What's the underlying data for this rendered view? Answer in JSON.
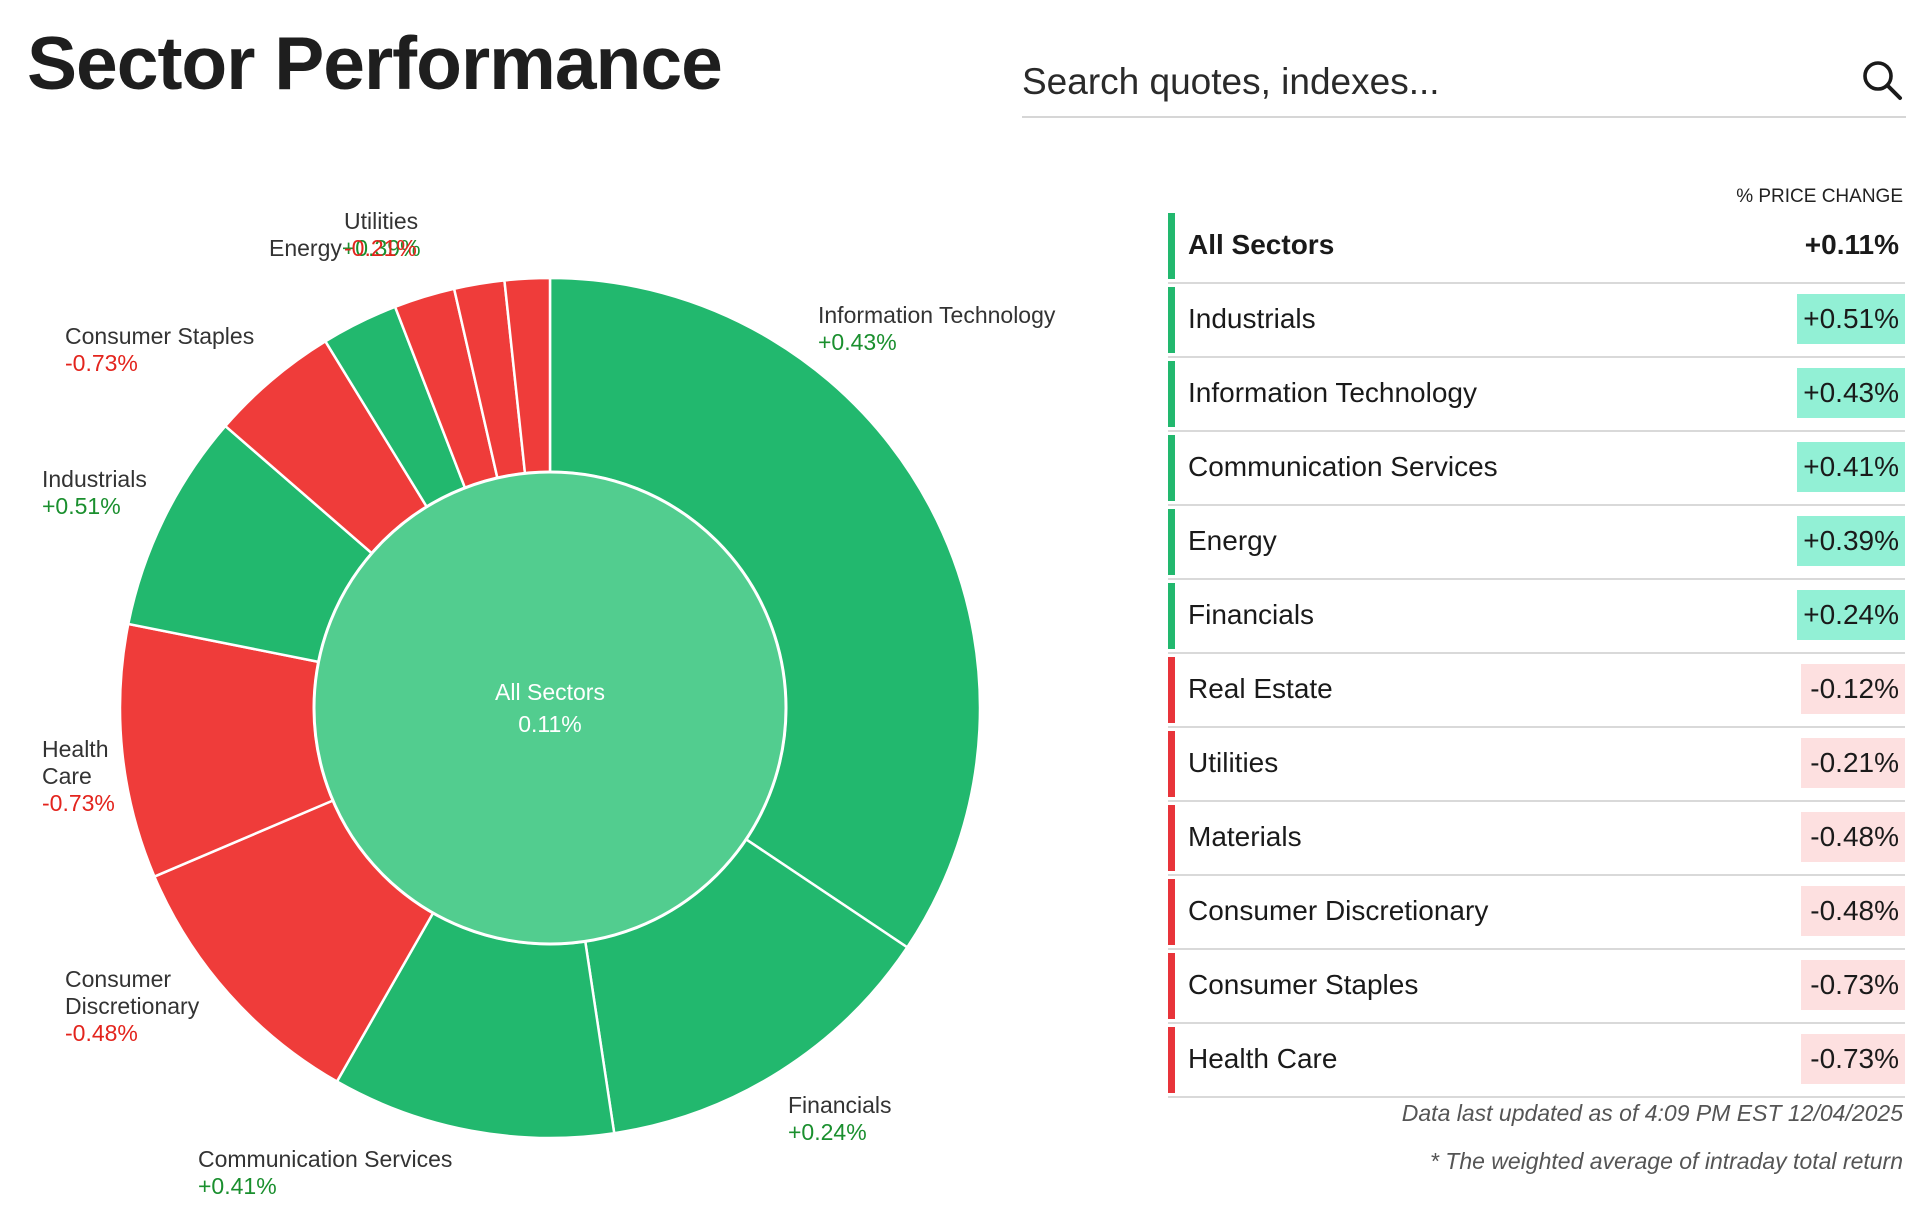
{
  "title": "Sector Performance",
  "search": {
    "placeholder": "Search quotes, indexes...",
    "icon": "search-icon"
  },
  "colors": {
    "up": "#22b86e",
    "down": "#ef3c3a",
    "center": "#52cd8f",
    "up_label": "#1a8f2e",
    "down_label": "#e3241d",
    "up_badge": "#92f0d5",
    "down_badge": "#fde0e0",
    "up_bar": "#22b86e",
    "down_bar": "#e8343a"
  },
  "chart_data": {
    "type": "pie",
    "title": "Sector Performance",
    "center": {
      "label": "All Sectors",
      "value": "0.11%"
    },
    "slices": [
      {
        "name": "Information Technology",
        "weight": 34.6,
        "change": 0.43,
        "label_lines": [
          "Information Technology"
        ],
        "change_label": "+0.43%"
      },
      {
        "name": "Financials",
        "weight": 13.3,
        "change": 0.24,
        "label_lines": [
          "Financials"
        ],
        "change_label": "+0.24%"
      },
      {
        "name": "Communication Services",
        "weight": 10.7,
        "change": 0.41,
        "label_lines": [
          "Communication Services"
        ],
        "change_label": "+0.41%"
      },
      {
        "name": "Consumer Discretionary",
        "weight": 10.4,
        "change": -0.48,
        "label_lines": [
          "Consumer",
          "Discretionary"
        ],
        "change_label": "-0.48%"
      },
      {
        "name": "Health Care",
        "weight": 9.6,
        "change": -0.73,
        "label_lines": [
          "Health",
          "Care"
        ],
        "change_label": "-0.73%"
      },
      {
        "name": "Industrials",
        "weight": 8.3,
        "change": 0.51,
        "label_lines": [
          "Industrials"
        ],
        "change_label": "+0.51%"
      },
      {
        "name": "Consumer Staples",
        "weight": 4.9,
        "change": -0.73,
        "label_lines": [
          "Consumer Staples"
        ],
        "change_label": "-0.73%"
      },
      {
        "name": "Energy",
        "weight": 2.9,
        "change": 0.39,
        "label_lines": [
          "Energy"
        ],
        "change_label": "+0.39%"
      },
      {
        "name": "Utilities",
        "weight": 2.3,
        "change": -0.21,
        "label_lines": [
          "Utilities"
        ],
        "change_label": "-0.21%"
      },
      {
        "name": "Real Estate",
        "weight": 1.9,
        "change": -0.12,
        "label_lines": [],
        "change_label": ""
      },
      {
        "name": "Materials",
        "weight": 1.7,
        "change": -0.48,
        "label_lines": [],
        "change_label": ""
      }
    ]
  },
  "table": {
    "header": "% PRICE CHANGE",
    "rows": [
      {
        "name": "All Sectors",
        "value": "+0.11%",
        "up": true,
        "total": true
      },
      {
        "name": "Industrials",
        "value": "+0.51%",
        "up": true
      },
      {
        "name": "Information Technology",
        "value": "+0.43%",
        "up": true
      },
      {
        "name": "Communication Services",
        "value": "+0.41%",
        "up": true
      },
      {
        "name": "Energy",
        "value": "+0.39%",
        "up": true
      },
      {
        "name": "Financials",
        "value": "+0.24%",
        "up": true
      },
      {
        "name": "Real Estate",
        "value": "-0.12%",
        "up": false
      },
      {
        "name": "Utilities",
        "value": "-0.21%",
        "up": false
      },
      {
        "name": "Materials",
        "value": "-0.48%",
        "up": false
      },
      {
        "name": "Consumer Discretionary",
        "value": "-0.48%",
        "up": false
      },
      {
        "name": "Consumer Staples",
        "value": "-0.73%",
        "up": false
      },
      {
        "name": "Health Care",
        "value": "-0.73%",
        "up": false
      }
    ]
  },
  "footer": {
    "updated": "Data last updated as of 4:09 PM EST 12/04/2025",
    "note": "* The weighted average of intraday total return"
  }
}
